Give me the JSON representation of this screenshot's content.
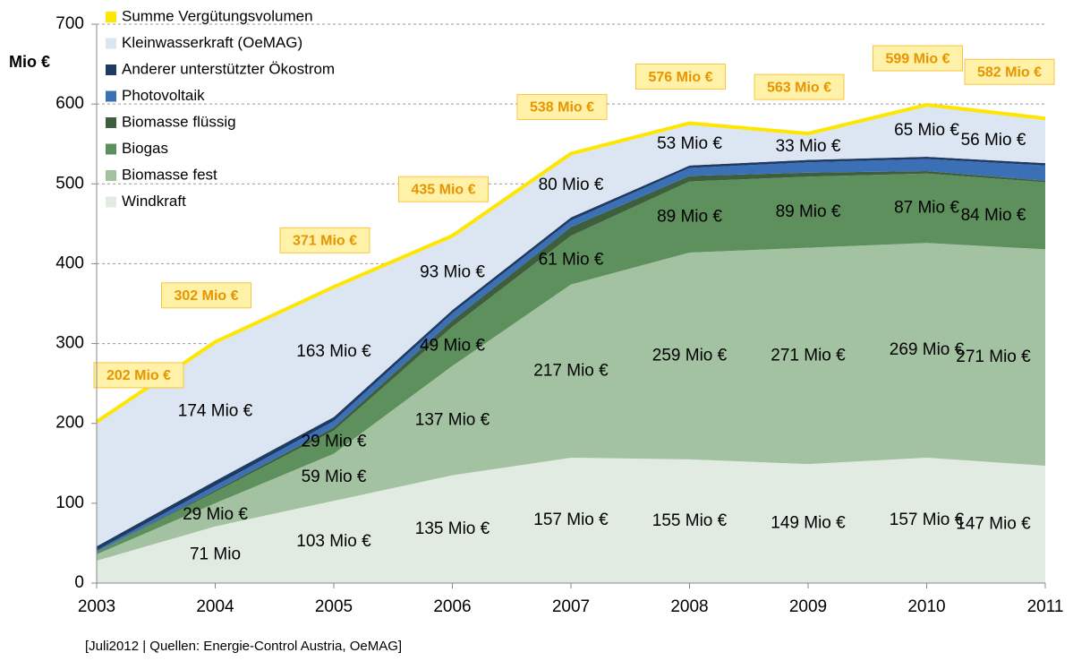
{
  "chart_data": {
    "type": "stacked_area",
    "y_label": "Mio €",
    "footnote": "[Juli2012 | Quellen:  Energie-Control Austria, OeMAG]",
    "x": [
      2003,
      2004,
      2005,
      2006,
      2007,
      2008,
      2009,
      2010,
      2011
    ],
    "xlim": [
      2003,
      2011
    ],
    "xticks": [
      2003,
      2004,
      2005,
      2006,
      2007,
      2008,
      2009,
      2010,
      2011
    ],
    "ylim": [
      0,
      700
    ],
    "yticks": [
      0,
      100,
      200,
      300,
      400,
      500,
      600,
      700
    ],
    "grid": true,
    "legend": "top-left",
    "total": {
      "name": "Summe Vergütungsvolumen",
      "color": "#ffe600",
      "values": [
        202,
        302,
        371,
        435,
        538,
        576,
        563,
        599,
        582
      ],
      "value_labels": [
        "202 Mio €",
        "302 Mio €",
        "371 Mio €",
        "435 Mio €",
        "538 Mio €",
        "576 Mio €",
        "563 Mio €",
        "599 Mio €",
        "582 Mio €"
      ]
    },
    "series": [
      {
        "name": "Windkraft",
        "color": "#e1ebe1",
        "values": [
          28,
          71,
          103,
          135,
          157,
          155,
          149,
          157,
          147
        ],
        "value_labels": [
          null,
          "71 Mio",
          "103 Mio €",
          "135 Mio €",
          "157 Mio €",
          "155 Mio €",
          "149 Mio €",
          "157 Mio €",
          "147 Mio €"
        ]
      },
      {
        "name": "Biomasse fest",
        "color": "#a2c2a2",
        "values": [
          8,
          29,
          59,
          137,
          217,
          259,
          271,
          269,
          271
        ],
        "value_labels": [
          null,
          "29 Mio €",
          "59 Mio €",
          "137 Mio €",
          "217 Mio €",
          "259 Mio €",
          "271 Mio €",
          "269 Mio €",
          "271 Mio €"
        ]
      },
      {
        "name": "Biogas",
        "color": "#5e905e",
        "values": [
          3,
          14,
          29,
          49,
          61,
          89,
          89,
          87,
          84
        ],
        "value_labels": [
          null,
          null,
          "29 Mio €",
          "49 Mio €",
          "61 Mio €",
          "89 Mio €",
          "89 Mio €",
          "87 Mio €",
          "84 Mio €"
        ]
      },
      {
        "name": "Biomasse flüssig",
        "color": "#3d5f3d",
        "values": [
          0,
          2,
          4,
          8,
          11,
          7,
          5,
          3,
          2
        ]
      },
      {
        "name": "Photovoltaik",
        "color": "#3b70b6",
        "values": [
          2,
          6,
          8,
          9,
          8,
          10,
          13,
          15,
          19
        ]
      },
      {
        "name": "Anderer unterstützter Ökostrom",
        "color": "#1f3b64",
        "values": [
          5,
          6,
          5,
          4,
          4,
          3,
          3,
          3,
          3
        ]
      },
      {
        "name": "Kleinwasserkraft (OeMAG)",
        "color": "#dce6f2",
        "values": [
          156,
          174,
          163,
          93,
          80,
          53,
          33,
          65,
          56
        ],
        "value_labels": [
          null,
          "174 Mio €",
          "163 Mio €",
          "93 Mio €",
          "80 Mio €",
          "53 Mio €",
          "33 Mio €",
          "65 Mio €",
          "56 Mio €"
        ]
      }
    ]
  }
}
